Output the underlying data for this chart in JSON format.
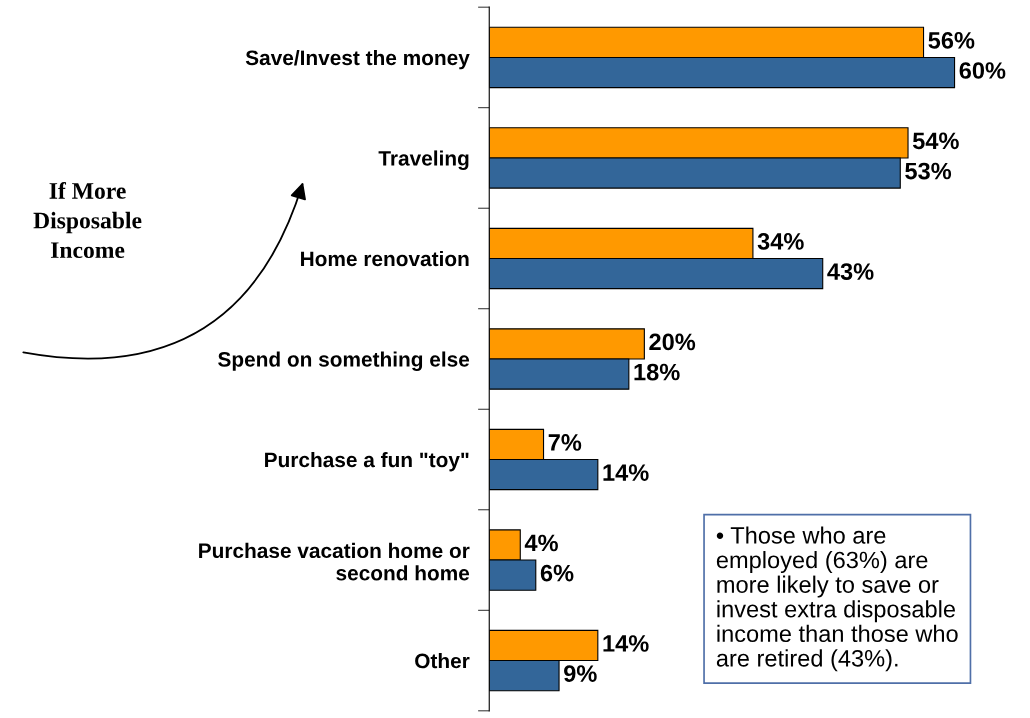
{
  "chart_data": {
    "type": "bar",
    "orientation": "horizontal",
    "categories": [
      "Save/Invest the money",
      "Traveling",
      "Home renovation",
      "Spend on something else",
      "Purchase a fun \"toy\"",
      "Purchase vacation home or\nsecond home",
      "Other"
    ],
    "series": [
      {
        "color": "#ff9900",
        "values": [
          56,
          54,
          34,
          20,
          7,
          4,
          14
        ],
        "value_labels": [
          "56%",
          "54%",
          "34%",
          "20%",
          "7%",
          "4%",
          "14%"
        ]
      },
      {
        "color": "#336699",
        "values": [
          60,
          53,
          43,
          18,
          14,
          6,
          9
        ],
        "value_labels": [
          "60%",
          "53%",
          "43%",
          "18%",
          "14%",
          "6%",
          "9%"
        ]
      }
    ],
    "grid": false,
    "legend": false,
    "annotations": [
      "If More\nDisposable\nIncome",
      "• Those who are\nemployed (63%) are\nmore likely to save or\ninvest extra disposable\nincome than those who\nare retired (43%)."
    ]
  }
}
